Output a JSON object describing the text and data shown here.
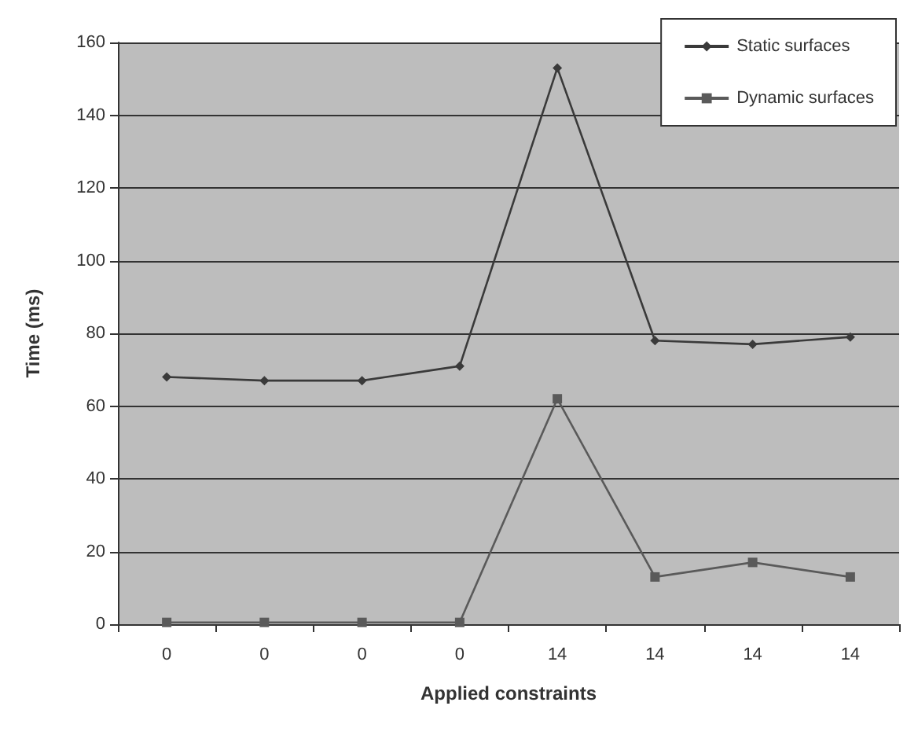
{
  "chart_data": {
    "type": "line",
    "xlabel": "Applied constraints",
    "ylabel": "Time (ms)",
    "categories": [
      "0",
      "0",
      "0",
      "0",
      "14",
      "14",
      "14",
      "14"
    ],
    "series": [
      {
        "name": "Static surfaces",
        "color": "#3a3a3a",
        "marker": "diamond",
        "values": [
          68,
          67,
          67,
          71,
          153,
          78,
          77,
          79
        ]
      },
      {
        "name": "Dynamic surfaces",
        "color": "#5a5a5a",
        "marker": "square",
        "values": [
          0.5,
          0.5,
          0.5,
          0.5,
          62,
          13,
          17,
          13
        ]
      }
    ],
    "ylim": [
      0,
      160
    ],
    "yticks": [
      0,
      20,
      40,
      60,
      80,
      100,
      120,
      140,
      160
    ],
    "grid": "y",
    "legend": "top right"
  }
}
